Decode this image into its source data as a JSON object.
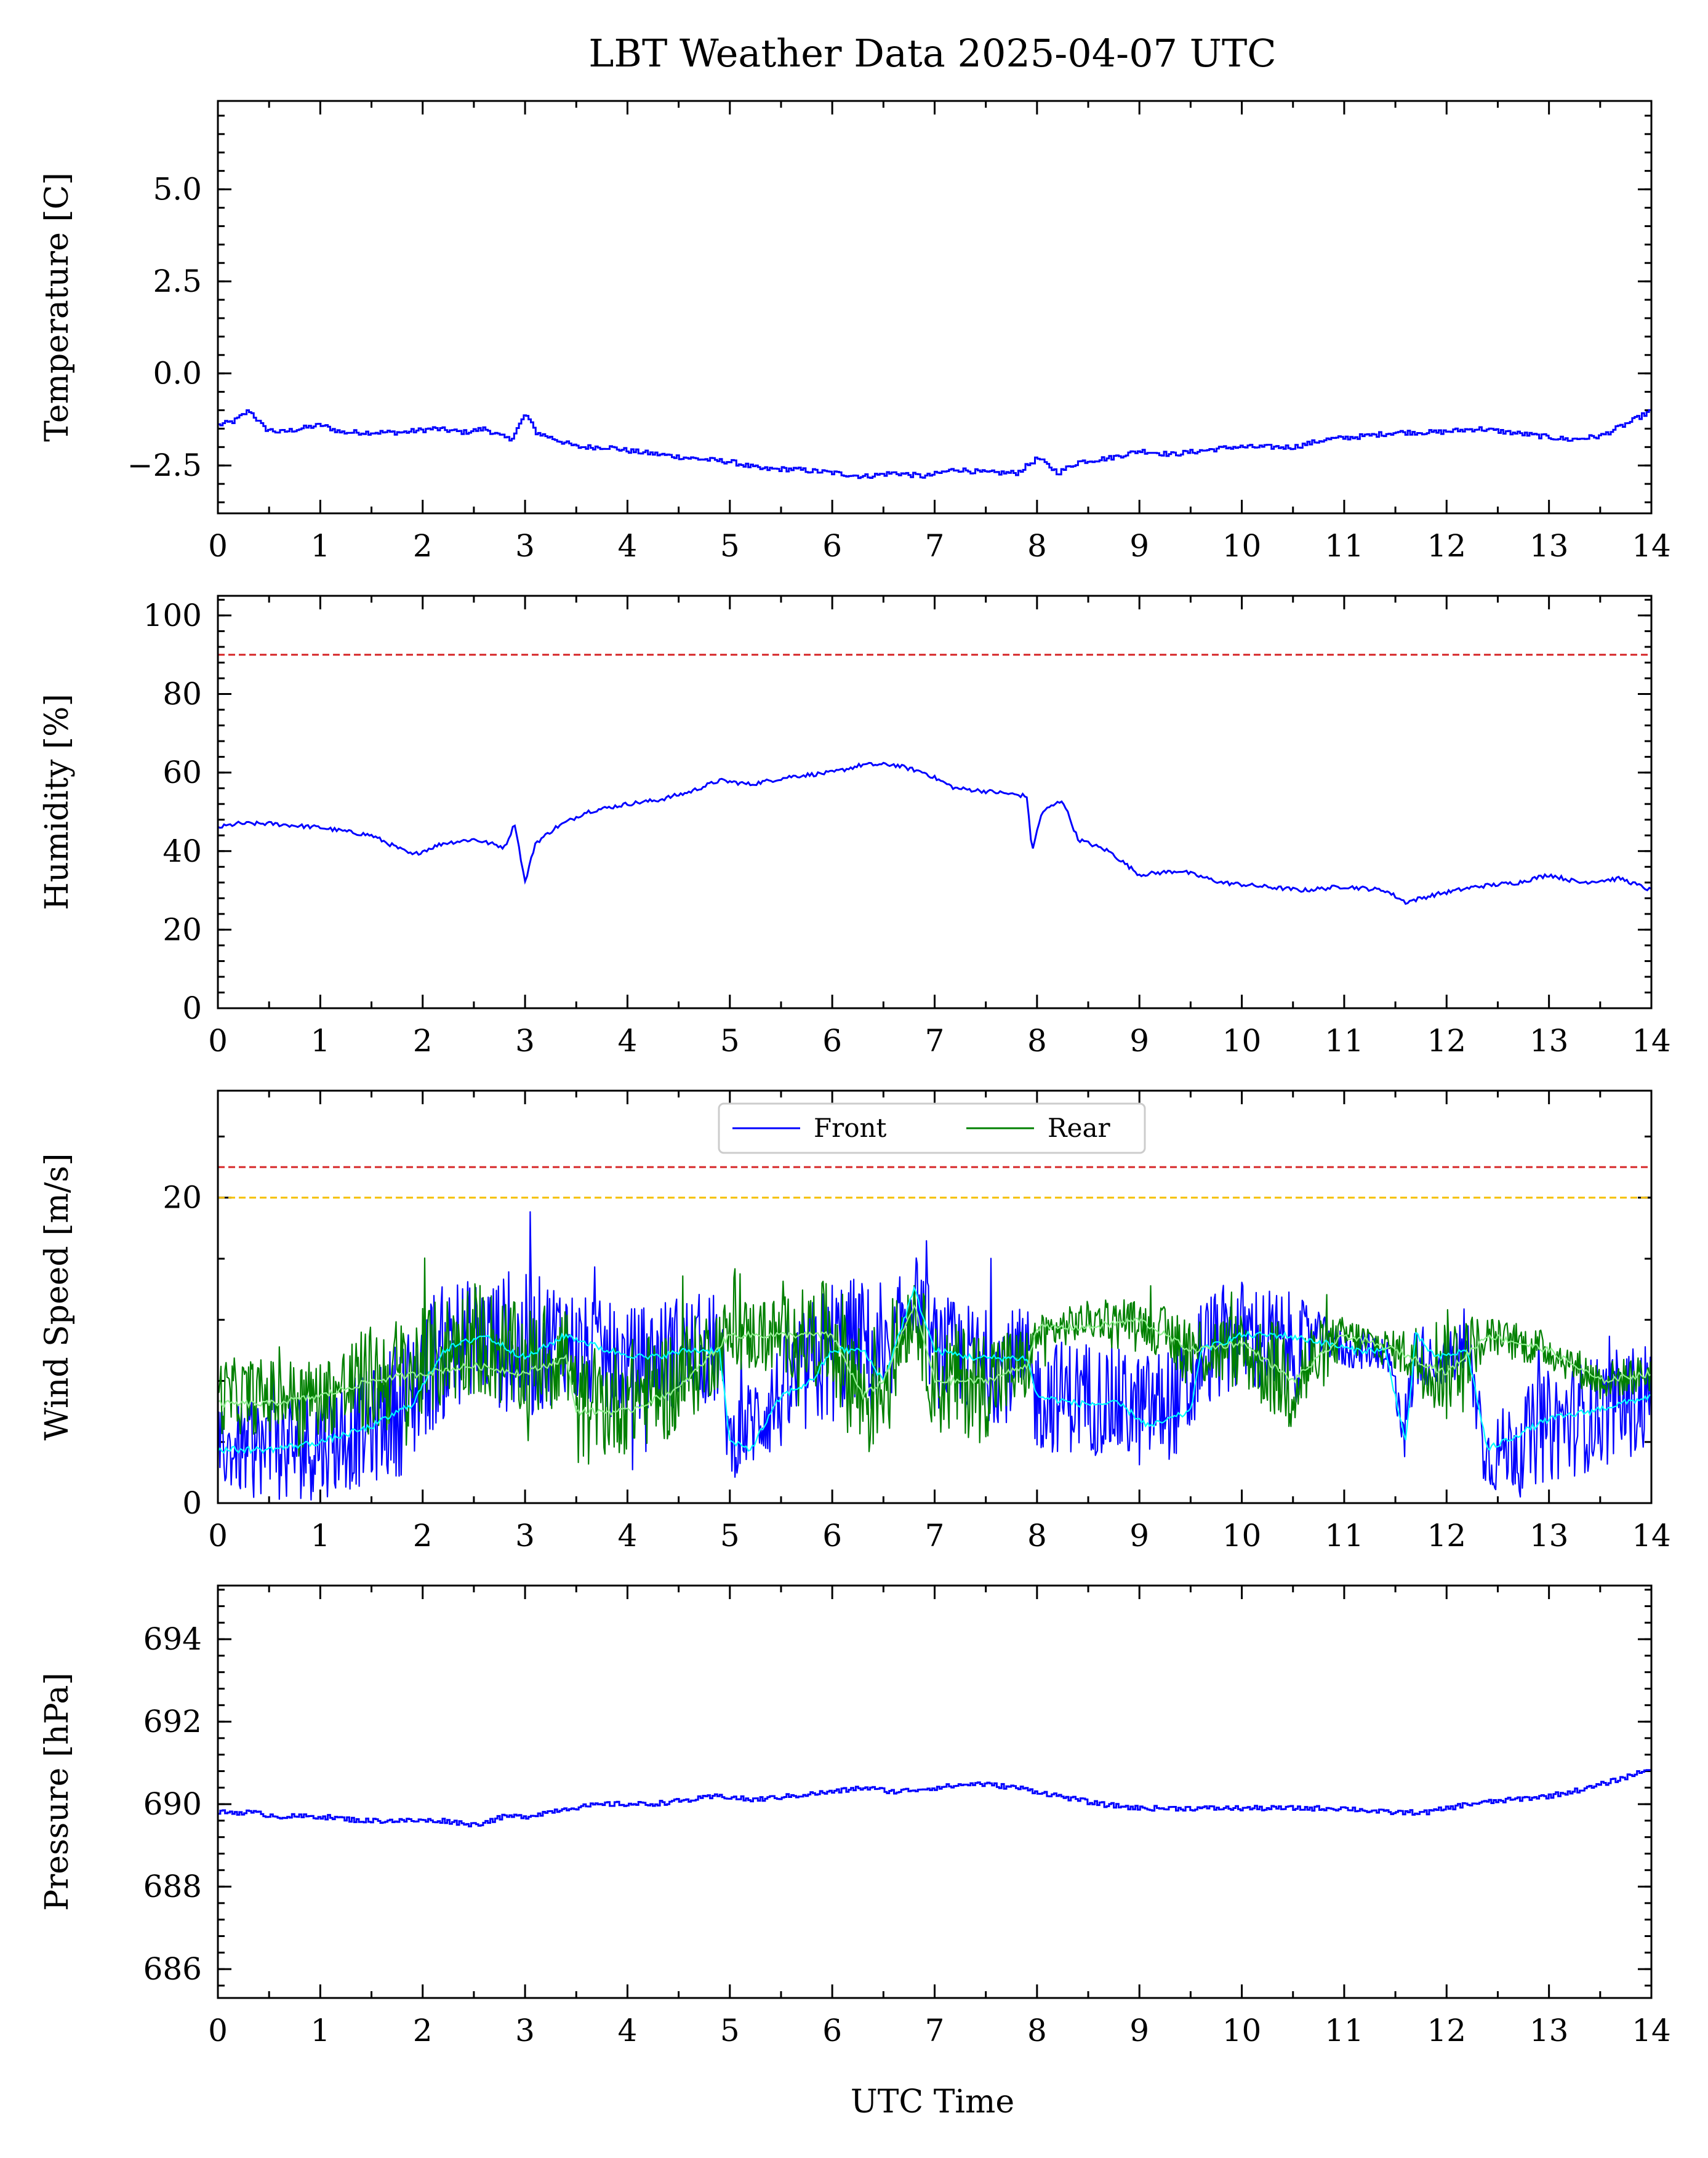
{
  "title": "LBT Weather Data 2025-04-07 UTC",
  "xlabel": "UTC Time",
  "colors": {
    "temperature": "#0000ff",
    "humidity": "#0000ff",
    "wind_front": "#0000ff",
    "wind_rear": "#008000",
    "wind_front_avg": "#00ffff",
    "wind_rear_avg": "#90ee90",
    "pressure": "#0000ff",
    "limit_red": "#d62728",
    "limit_yellow": "#f5c000"
  },
  "chart_data": [
    {
      "type": "line",
      "ylabel": "Temperature [C]",
      "xlim": [
        0,
        14
      ],
      "ylim": [
        -3.8,
        7.4
      ],
      "x_ticks": [
        "0",
        "1",
        "2",
        "3",
        "4",
        "5",
        "6",
        "7",
        "8",
        "9",
        "10",
        "11",
        "12",
        "13",
        "14"
      ],
      "y_ticks": [
        {
          "value": 5.0,
          "label": "5.0"
        },
        {
          "value": 2.5,
          "label": "2.5"
        },
        {
          "value": 0.0,
          "label": "0.0"
        },
        {
          "value": -2.5,
          "label": "−2.5"
        }
      ],
      "series": [
        {
          "style": "step",
          "x": [
            0,
            0.15,
            0.3,
            0.45,
            0.6,
            0.8,
            1.0,
            1.2,
            1.5,
            1.8,
            2.1,
            2.4,
            2.6,
            2.75,
            2.85,
            3.0,
            3.1,
            3.3,
            3.5,
            3.8,
            4.0,
            4.3,
            4.6,
            5.0,
            5.3,
            5.6,
            6.0,
            6.3,
            6.6,
            6.9,
            7.2,
            7.5,
            7.8,
            8.0,
            8.2,
            8.4,
            8.7,
            9.0,
            9.3,
            9.6,
            9.9,
            10.2,
            10.5,
            10.8,
            11.2,
            11.5,
            11.9,
            12.3,
            12.6,
            12.9,
            13.2,
            13.5,
            13.8,
            14.0
          ],
          "y": [
            -1.4,
            -1.3,
            -1.0,
            -1.5,
            -1.6,
            -1.5,
            -1.4,
            -1.6,
            -1.6,
            -1.6,
            -1.5,
            -1.6,
            -1.5,
            -1.7,
            -1.8,
            -1.1,
            -1.6,
            -1.8,
            -2.0,
            -2.0,
            -2.1,
            -2.2,
            -2.3,
            -2.4,
            -2.6,
            -2.6,
            -2.7,
            -2.8,
            -2.7,
            -2.8,
            -2.6,
            -2.7,
            -2.7,
            -2.3,
            -2.7,
            -2.4,
            -2.3,
            -2.1,
            -2.2,
            -2.1,
            -2.0,
            -2.0,
            -2.0,
            -1.8,
            -1.7,
            -1.6,
            -1.6,
            -1.5,
            -1.6,
            -1.7,
            -1.8,
            -1.7,
            -1.3,
            -1.0
          ]
        }
      ]
    },
    {
      "type": "line",
      "ylabel": "Humidity [%]",
      "xlim": [
        0,
        14
      ],
      "ylim": [
        0,
        105
      ],
      "x_ticks": [
        "0",
        "1",
        "2",
        "3",
        "4",
        "5",
        "6",
        "7",
        "8",
        "9",
        "10",
        "11",
        "12",
        "13",
        "14"
      ],
      "y_ticks": [
        {
          "value": 0,
          "label": "0"
        },
        {
          "value": 20,
          "label": "20"
        },
        {
          "value": 40,
          "label": "40"
        },
        {
          "value": 60,
          "label": "60"
        },
        {
          "value": 80,
          "label": "80"
        },
        {
          "value": 100,
          "label": "100"
        }
      ],
      "hlines": [
        {
          "value": 90,
          "color": "limit_red"
        }
      ],
      "series": [
        {
          "style": "line",
          "x": [
            0,
            0.2,
            0.5,
            1.0,
            1.5,
            1.9,
            2.2,
            2.5,
            2.8,
            2.9,
            3.0,
            3.1,
            3.3,
            3.6,
            4.0,
            4.3,
            4.6,
            4.9,
            5.2,
            5.6,
            6.0,
            6.3,
            6.6,
            6.9,
            7.2,
            7.6,
            7.9,
            7.95,
            8.05,
            8.25,
            8.4,
            8.7,
            9.0,
            9.4,
            9.8,
            10.2,
            10.6,
            11.0,
            11.4,
            11.6,
            11.9,
            12.3,
            12.7,
            13.0,
            13.3,
            13.7,
            14.0
          ],
          "y": [
            46,
            47,
            47,
            46,
            44,
            39,
            42,
            43,
            41,
            47,
            32,
            42,
            46,
            50,
            52,
            53,
            55,
            58,
            57,
            59,
            60,
            62,
            62,
            60,
            56,
            55,
            54,
            40,
            50,
            53,
            43,
            40,
            34,
            35,
            32,
            31,
            30,
            31,
            30,
            27,
            29,
            31,
            32,
            34,
            32,
            33,
            30
          ]
        }
      ]
    },
    {
      "type": "line",
      "ylabel": "Wind Speed [m/s]",
      "xlim": [
        0,
        14
      ],
      "ylim": [
        0,
        27
      ],
      "x_ticks": [
        "0",
        "1",
        "2",
        "3",
        "4",
        "5",
        "6",
        "7",
        "8",
        "9",
        "10",
        "11",
        "12",
        "13",
        "14"
      ],
      "y_ticks": [
        {
          "value": 0,
          "label": "0"
        },
        {
          "value": 20,
          "label": "20"
        }
      ],
      "hlines": [
        {
          "value": 22,
          "color": "limit_red"
        },
        {
          "value": 20,
          "color": "limit_yellow"
        }
      ],
      "legend": {
        "position": "top-center",
        "entries": [
          "Front",
          "Rear"
        ]
      },
      "series": [
        {
          "name": "Front",
          "color": "wind_front",
          "style": "noisy",
          "x": [
            0,
            0.5,
            1.0,
            1.5,
            1.9,
            2.0,
            2.5,
            3.0,
            3.4,
            3.5,
            4.0,
            4.5,
            4.9,
            5.0,
            5.5,
            6.0,
            6.3,
            6.5,
            6.8,
            7.0,
            7.5,
            7.9,
            8.0,
            8.5,
            9.0,
            9.5,
            9.6,
            10.0,
            10.5,
            10.8,
            11.0,
            11.4,
            11.6,
            11.7,
            11.9,
            12.2,
            12.4,
            13.0,
            13.5,
            14.0
          ],
          "y": [
            3.5,
            3.5,
            4,
            5,
            7,
            9,
            11,
            10,
            11,
            10,
            9,
            10,
            10,
            4,
            7,
            10,
            11,
            8,
            14,
            10,
            9,
            9,
            7,
            7,
            6,
            7,
            10,
            11,
            10,
            11,
            10,
            10,
            5,
            10,
            9,
            10,
            3,
            5,
            6,
            7
          ],
          "amp": [
            2,
            3,
            3,
            3,
            4,
            4,
            3,
            4,
            3,
            3,
            3,
            3,
            3,
            2,
            3,
            4,
            3,
            4,
            2,
            3,
            3,
            3,
            3,
            3,
            3,
            3,
            3,
            3,
            3,
            1,
            1,
            1,
            2,
            2,
            1,
            2,
            2,
            3,
            3,
            3
          ]
        },
        {
          "name": "Rear",
          "color": "wind_rear",
          "style": "noisy",
          "x": [
            0,
            0.5,
            1.0,
            1.5,
            2.0,
            2.5,
            3.0,
            3.4,
            3.5,
            4.0,
            4.5,
            5.0,
            5.5,
            6.0,
            6.3,
            6.5,
            6.8,
            7.0,
            7.5,
            7.9,
            8.0,
            8.5,
            9.0,
            9.5,
            10.0,
            10.5,
            11.0,
            11.5,
            12.0,
            12.4,
            13.0,
            13.5,
            14.0
          ],
          "y": [
            7,
            7,
            7,
            8,
            9,
            11,
            9,
            10,
            6,
            7,
            8,
            11,
            11,
            11,
            7,
            8,
            13,
            8,
            8,
            9,
            11,
            12,
            12,
            10,
            10,
            8,
            11,
            10,
            9,
            11,
            10,
            8,
            8.5
          ],
          "amp": [
            2,
            2,
            2,
            3,
            3,
            3,
            3,
            3,
            3,
            3,
            3,
            2,
            2,
            3,
            4,
            3,
            2,
            3,
            3,
            2,
            1,
            1,
            1,
            2,
            2,
            3,
            1,
            1,
            3,
            1,
            1,
            1,
            1
          ]
        },
        {
          "name": "",
          "color": "wind_front_avg",
          "style": "line",
          "x": [
            0,
            0.5,
            1.0,
            1.5,
            1.9,
            2.2,
            2.6,
            3.0,
            3.4,
            3.8,
            4.2,
            4.6,
            4.9,
            5.0,
            5.2,
            5.5,
            5.8,
            6.0,
            6.3,
            6.5,
            6.8,
            7.0,
            7.4,
            7.9,
            8.0,
            8.4,
            8.8,
            9.1,
            9.5,
            9.6,
            10.0,
            10.4,
            10.8,
            11.1,
            11.4,
            11.6,
            11.7,
            11.9,
            12.2,
            12.4,
            12.7,
            13.0,
            13.4,
            13.7,
            14.0
          ],
          "y": [
            3.5,
            3.5,
            4,
            5,
            6.5,
            10,
            11,
            9.5,
            11,
            10,
            9.5,
            10,
            10,
            4,
            3.5,
            7,
            8,
            10,
            10,
            8,
            14,
            10,
            9.5,
            9.5,
            7,
            6.5,
            6.5,
            5,
            6,
            10,
            11,
            11,
            10.5,
            10,
            10,
            4,
            11,
            9.5,
            10,
            3.5,
            4.5,
            5.5,
            6,
            6.5,
            7
          ]
        },
        {
          "name": "",
          "color": "wind_rear_avg",
          "style": "line",
          "x": [
            0,
            0.5,
            1.0,
            1.5,
            2.0,
            2.5,
            3.0,
            3.4,
            3.5,
            4.0,
            4.5,
            5.0,
            5.5,
            6.0,
            6.3,
            6.5,
            6.8,
            7.0,
            7.5,
            7.9,
            8.0,
            8.5,
            9.0,
            9.5,
            10.0,
            10.5,
            11.0,
            11.5,
            12.0,
            12.4,
            13.0,
            13.5,
            14.0
          ],
          "y": [
            6.5,
            6.5,
            7,
            8,
            8.5,
            9,
            8.5,
            9.5,
            6,
            6,
            7.5,
            11,
            11,
            11,
            7,
            8,
            13,
            8,
            8,
            9,
            11.5,
            11.5,
            12,
            10,
            10.5,
            8,
            11,
            10,
            8.5,
            11,
            10,
            8,
            8.5
          ]
        }
      ]
    },
    {
      "type": "line",
      "ylabel": "Pressure [hPa]",
      "xlim": [
        0,
        14
      ],
      "ylim": [
        685.3,
        695.3
      ],
      "x_ticks": [
        "0",
        "1",
        "2",
        "3",
        "4",
        "5",
        "6",
        "7",
        "8",
        "9",
        "10",
        "11",
        "12",
        "13",
        "14"
      ],
      "y_ticks": [
        {
          "value": 686,
          "label": "686"
        },
        {
          "value": 688,
          "label": "688"
        },
        {
          "value": 690,
          "label": "690"
        },
        {
          "value": 692,
          "label": "692"
        },
        {
          "value": 694,
          "label": "694"
        }
      ],
      "series": [
        {
          "style": "step",
          "x": [
            0,
            0.3,
            0.6,
            1.0,
            1.4,
            1.8,
            2.2,
            2.5,
            2.8,
            3.0,
            3.4,
            3.8,
            4.2,
            4.6,
            4.9,
            5.2,
            5.6,
            6.0,
            6.3,
            6.6,
            7.0,
            7.4,
            7.8,
            8.2,
            8.6,
            9.0,
            9.4,
            9.8,
            10.2,
            10.6,
            11.0,
            11.4,
            11.8,
            12.2,
            12.6,
            13.0,
            13.4,
            13.8,
            14.0
          ],
          "y": [
            689.8,
            689.8,
            689.7,
            689.7,
            689.6,
            689.6,
            689.6,
            689.5,
            689.7,
            689.7,
            689.9,
            690.0,
            690.0,
            690.1,
            690.2,
            690.1,
            690.2,
            690.3,
            690.4,
            690.3,
            690.4,
            690.5,
            690.4,
            690.2,
            690.0,
            689.9,
            689.9,
            689.9,
            689.9,
            689.9,
            689.9,
            689.8,
            689.8,
            690.0,
            690.1,
            690.2,
            690.4,
            690.7,
            690.9
          ]
        }
      ]
    }
  ]
}
